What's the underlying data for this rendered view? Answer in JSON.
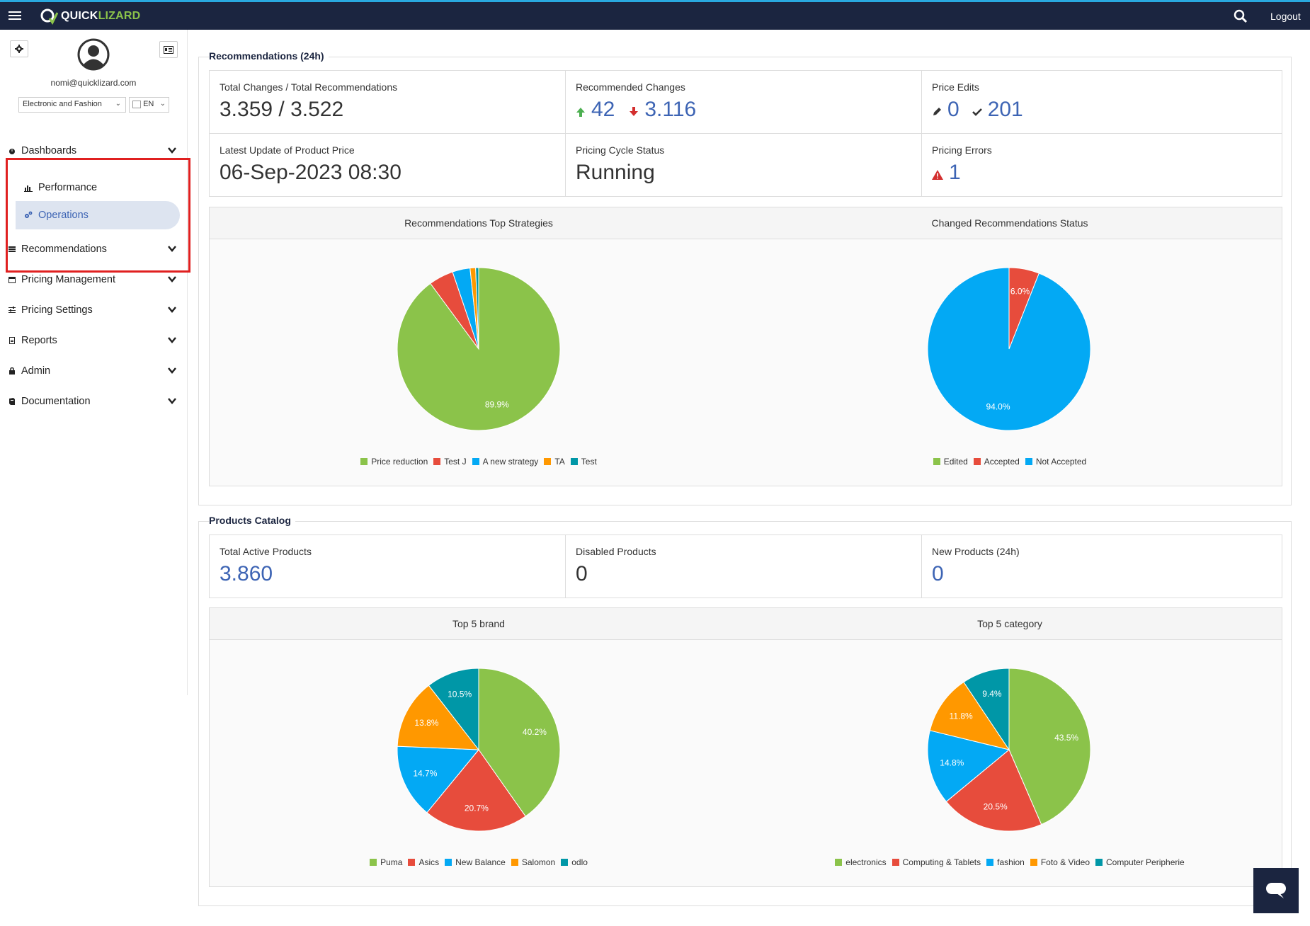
{
  "app": {
    "brand_prefix": "QUICK",
    "brand_suffix": "LIZARD",
    "logout_label": "Logout"
  },
  "user": {
    "email": "nomi@quicklizard.com",
    "account": "Electronic and Fashion",
    "language": "EN"
  },
  "nav": {
    "dashboards": "Dashboards",
    "performance": "Performance",
    "operations": "Operations",
    "recommendations": "Recommendations",
    "pricing_management": "Pricing Management",
    "pricing_settings": "Pricing Settings",
    "reports": "Reports",
    "admin": "Admin",
    "documentation": "Documentation"
  },
  "recommendations": {
    "title": "Recommendations (24h)",
    "total_label": "Total Changes / Total Recommendations",
    "total_value": "3.359 / 3.522",
    "recommended_label": "Recommended Changes",
    "recommended_up": "42",
    "recommended_down": "3.116",
    "price_edits_label": "Price Edits",
    "price_edits_edited": "0",
    "price_edits_accepted": "201",
    "latest_label": "Latest Update of Product Price",
    "latest_value": "06-Sep-2023 08:30",
    "cycle_label": "Pricing Cycle Status",
    "cycle_value": "Running",
    "errors_label": "Pricing Errors",
    "errors_value": "1",
    "chart1_title": "Recommendations Top Strategies",
    "chart2_title": "Changed Recommendations Status"
  },
  "catalog": {
    "title": "Products Catalog",
    "active_label": "Total Active Products",
    "active_value": "3.860",
    "disabled_label": "Disabled Products",
    "disabled_value": "0",
    "new_label": "New Products (24h)",
    "new_value": "0",
    "chart3_title": "Top 5 brand",
    "chart4_title": "Top 5 category"
  },
  "colors": {
    "green": "#8bc34a",
    "red": "#e74c3c",
    "blue": "#03a9f4",
    "orange": "#ff9800",
    "teal": "#0097a7",
    "navy": "#1b2540",
    "accent": "#3d64b4"
  },
  "chart_data": [
    {
      "type": "pie",
      "title": "Recommendations Top Strategies",
      "categories": [
        "Price reduction",
        "Test J",
        "A new strategy",
        "TA",
        "Test"
      ],
      "values": [
        89.9,
        4.9,
        3.5,
        1.1,
        0.6
      ],
      "colors": [
        "#8bc34a",
        "#e74c3c",
        "#03a9f4",
        "#ff9800",
        "#0097a7"
      ],
      "labels": [
        "89.9%",
        "",
        "",
        "",
        ""
      ]
    },
    {
      "type": "pie",
      "title": "Changed Recommendations Status",
      "categories": [
        "Edited",
        "Accepted",
        "Not Accepted"
      ],
      "values": [
        0,
        6.0,
        94.0
      ],
      "colors": [
        "#8bc34a",
        "#e74c3c",
        "#03a9f4"
      ],
      "labels": [
        "",
        "6.0%",
        "94.0%"
      ]
    },
    {
      "type": "pie",
      "title": "Top 5 brand",
      "categories": [
        "Puma",
        "Asics",
        "New Balance",
        "Salomon",
        "odlo"
      ],
      "values": [
        40.2,
        20.7,
        14.7,
        13.8,
        10.5
      ],
      "colors": [
        "#8bc34a",
        "#e74c3c",
        "#03a9f4",
        "#ff9800",
        "#0097a7"
      ],
      "labels": [
        "40.2%",
        "20.7%",
        "14.7%",
        "13.8%",
        "10.5%"
      ]
    },
    {
      "type": "pie",
      "title": "Top 5 category",
      "categories": [
        "electronics",
        "Computing & Tablets",
        "fashion",
        "Foto & Video",
        "Computer Peripherie"
      ],
      "values": [
        43.5,
        20.5,
        14.8,
        11.8,
        9.4
      ],
      "colors": [
        "#8bc34a",
        "#e74c3c",
        "#03a9f4",
        "#ff9800",
        "#0097a7"
      ],
      "labels": [
        "43.5%",
        "20.5%",
        "14.8%",
        "11.8%",
        "9.4%"
      ]
    }
  ]
}
